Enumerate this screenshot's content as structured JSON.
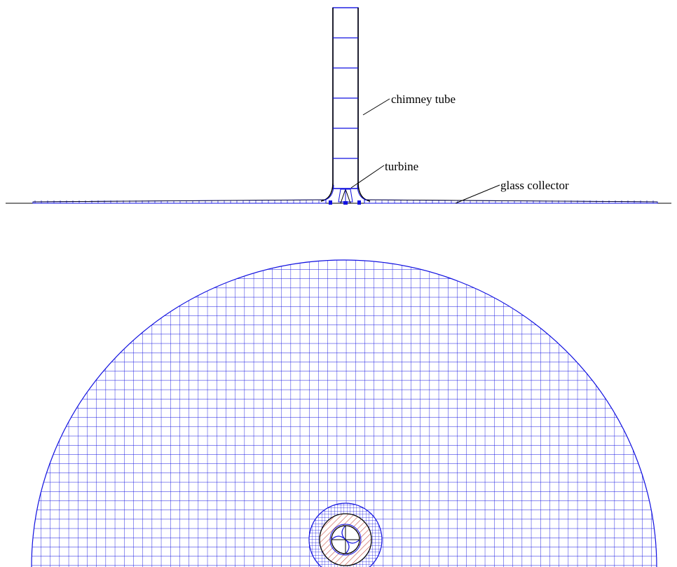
{
  "labels": {
    "chimney": "chimney tube",
    "turbine": "turbine",
    "collector": "glass collector"
  },
  "colors": {
    "mesh": "#1010e0",
    "outline": "#000000",
    "rotor": "#c0392b",
    "background": "#ffffff"
  }
}
